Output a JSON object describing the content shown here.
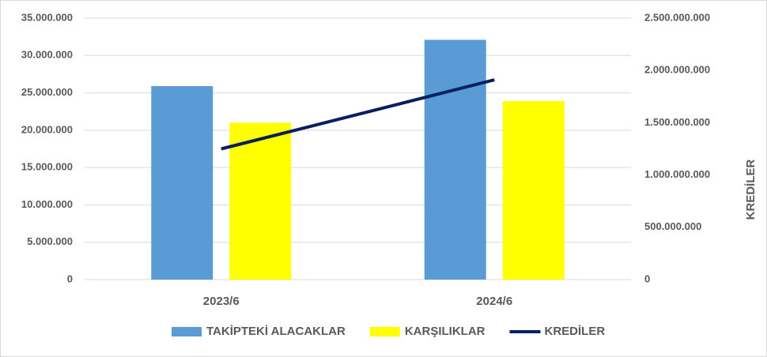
{
  "chart_data": {
    "type": "bar",
    "categories": [
      "2023/6",
      "2024/6"
    ],
    "series": [
      {
        "name": "TAKİPTEKİ ALACAKLAR",
        "color": "#5b9bd5",
        "type": "bar",
        "values": [
          25900000,
          32100000
        ]
      },
      {
        "name": "KARŞILIKLAR",
        "color": "#ffff00",
        "type": "bar",
        "values": [
          21000000,
          23900000
        ]
      },
      {
        "name": "KREDİLER",
        "color": "#002060",
        "type": "line",
        "axis": "y2",
        "values": [
          1250000000,
          1910000000
        ]
      }
    ],
    "y2_label": "KREDİLER",
    "ylim": [
      0,
      35000000
    ],
    "yticks": [
      0,
      {
        "value": 5000000,
        "label": "5.000.000"
      },
      {
        "value": 10000000,
        "label": "10.000.000"
      },
      {
        "value": 15000000,
        "label": "15.000.000"
      },
      {
        "value": 20000000,
        "label": "20.000.000"
      },
      {
        "value": 25000000,
        "label": "25.000.000"
      },
      {
        "value": 30000000,
        "label": "30.000.000"
      },
      {
        "value": 35000000,
        "label": "35.000.000"
      }
    ],
    "y2lim": [
      0,
      2500000000
    ],
    "y2ticks": [
      0,
      {
        "value": 500000000,
        "label": "500.000.000"
      },
      {
        "value": 1000000000,
        "label": "1.000.000.000"
      },
      {
        "value": 1500000000,
        "label": "1.500.000.000"
      },
      {
        "value": 2000000000,
        "label": "2.000.000.000"
      },
      {
        "value": 2500000000,
        "label": "2.500.000.000"
      }
    ],
    "grid": true,
    "legend": "bottom"
  }
}
